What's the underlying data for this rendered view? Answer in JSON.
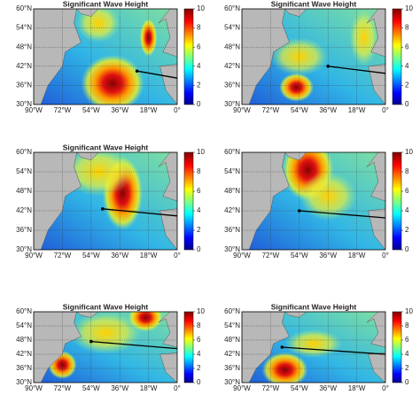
{
  "panels": [
    {
      "title": "Significant Wave Height",
      "lat_labels": [
        "60°N",
        "54°N",
        "48°N",
        "42°N",
        "36°N",
        "30°N"
      ],
      "lon_labels": [
        "90°W",
        "72°W",
        "54°W",
        "36°W",
        "18°W",
        "0°"
      ],
      "colorbar_ticks": [
        0,
        2,
        4,
        6,
        8,
        10
      ]
    },
    {
      "title": "Significant Wave Height",
      "lat_labels": [
        "60°N",
        "54°N",
        "48°N",
        "42°N",
        "36°N",
        "30°N"
      ],
      "lon_labels": [
        "90°W",
        "72°W",
        "54°W",
        "36°W",
        "18°W",
        "0°"
      ],
      "colorbar_ticks": [
        0,
        2,
        4,
        6,
        8,
        10
      ]
    },
    {
      "title": "Significant Wave Height",
      "lat_labels": [
        "60°N",
        "54°N",
        "48°N",
        "42°N",
        "36°N",
        "30°N"
      ],
      "lon_labels": [
        "90°W",
        "72°W",
        "54°W",
        "36°W",
        "18°W",
        "0°"
      ],
      "colorbar_ticks": [
        0,
        2,
        4,
        6,
        8,
        10
      ]
    },
    {
      "lat_labels": [
        "60°N",
        "54°N",
        "48°N",
        "42°N",
        "36°N",
        "30°N"
      ],
      "lon_labels": [
        "90°W",
        "72°W",
        "54°W",
        "36°W",
        "18°W",
        "0°"
      ],
      "colorbar_ticks": [
        0,
        2,
        4,
        6,
        8,
        10
      ]
    },
    {
      "title": "Significant Wave Height",
      "lat_labels": [
        "60°N",
        "54°N",
        "48°N",
        "42°N",
        "36°N",
        "30°N"
      ],
      "lon_labels": [
        "90°W",
        "72°W",
        "54°W",
        "36°W",
        "18°W",
        "0°"
      ],
      "colorbar_ticks": [
        0,
        2,
        4,
        6,
        8,
        10
      ]
    },
    {
      "title": "Significant Wave Height",
      "lat_labels": [
        "60°N",
        "54°N",
        "48°N",
        "42°N",
        "36°N",
        "30°N"
      ],
      "lon_labels": [
        "90°W",
        "72°W",
        "54°W",
        "36°W",
        "18°W",
        "0°"
      ],
      "colorbar_ticks": [
        0,
        2,
        4,
        6,
        8,
        10
      ]
    }
  ]
}
